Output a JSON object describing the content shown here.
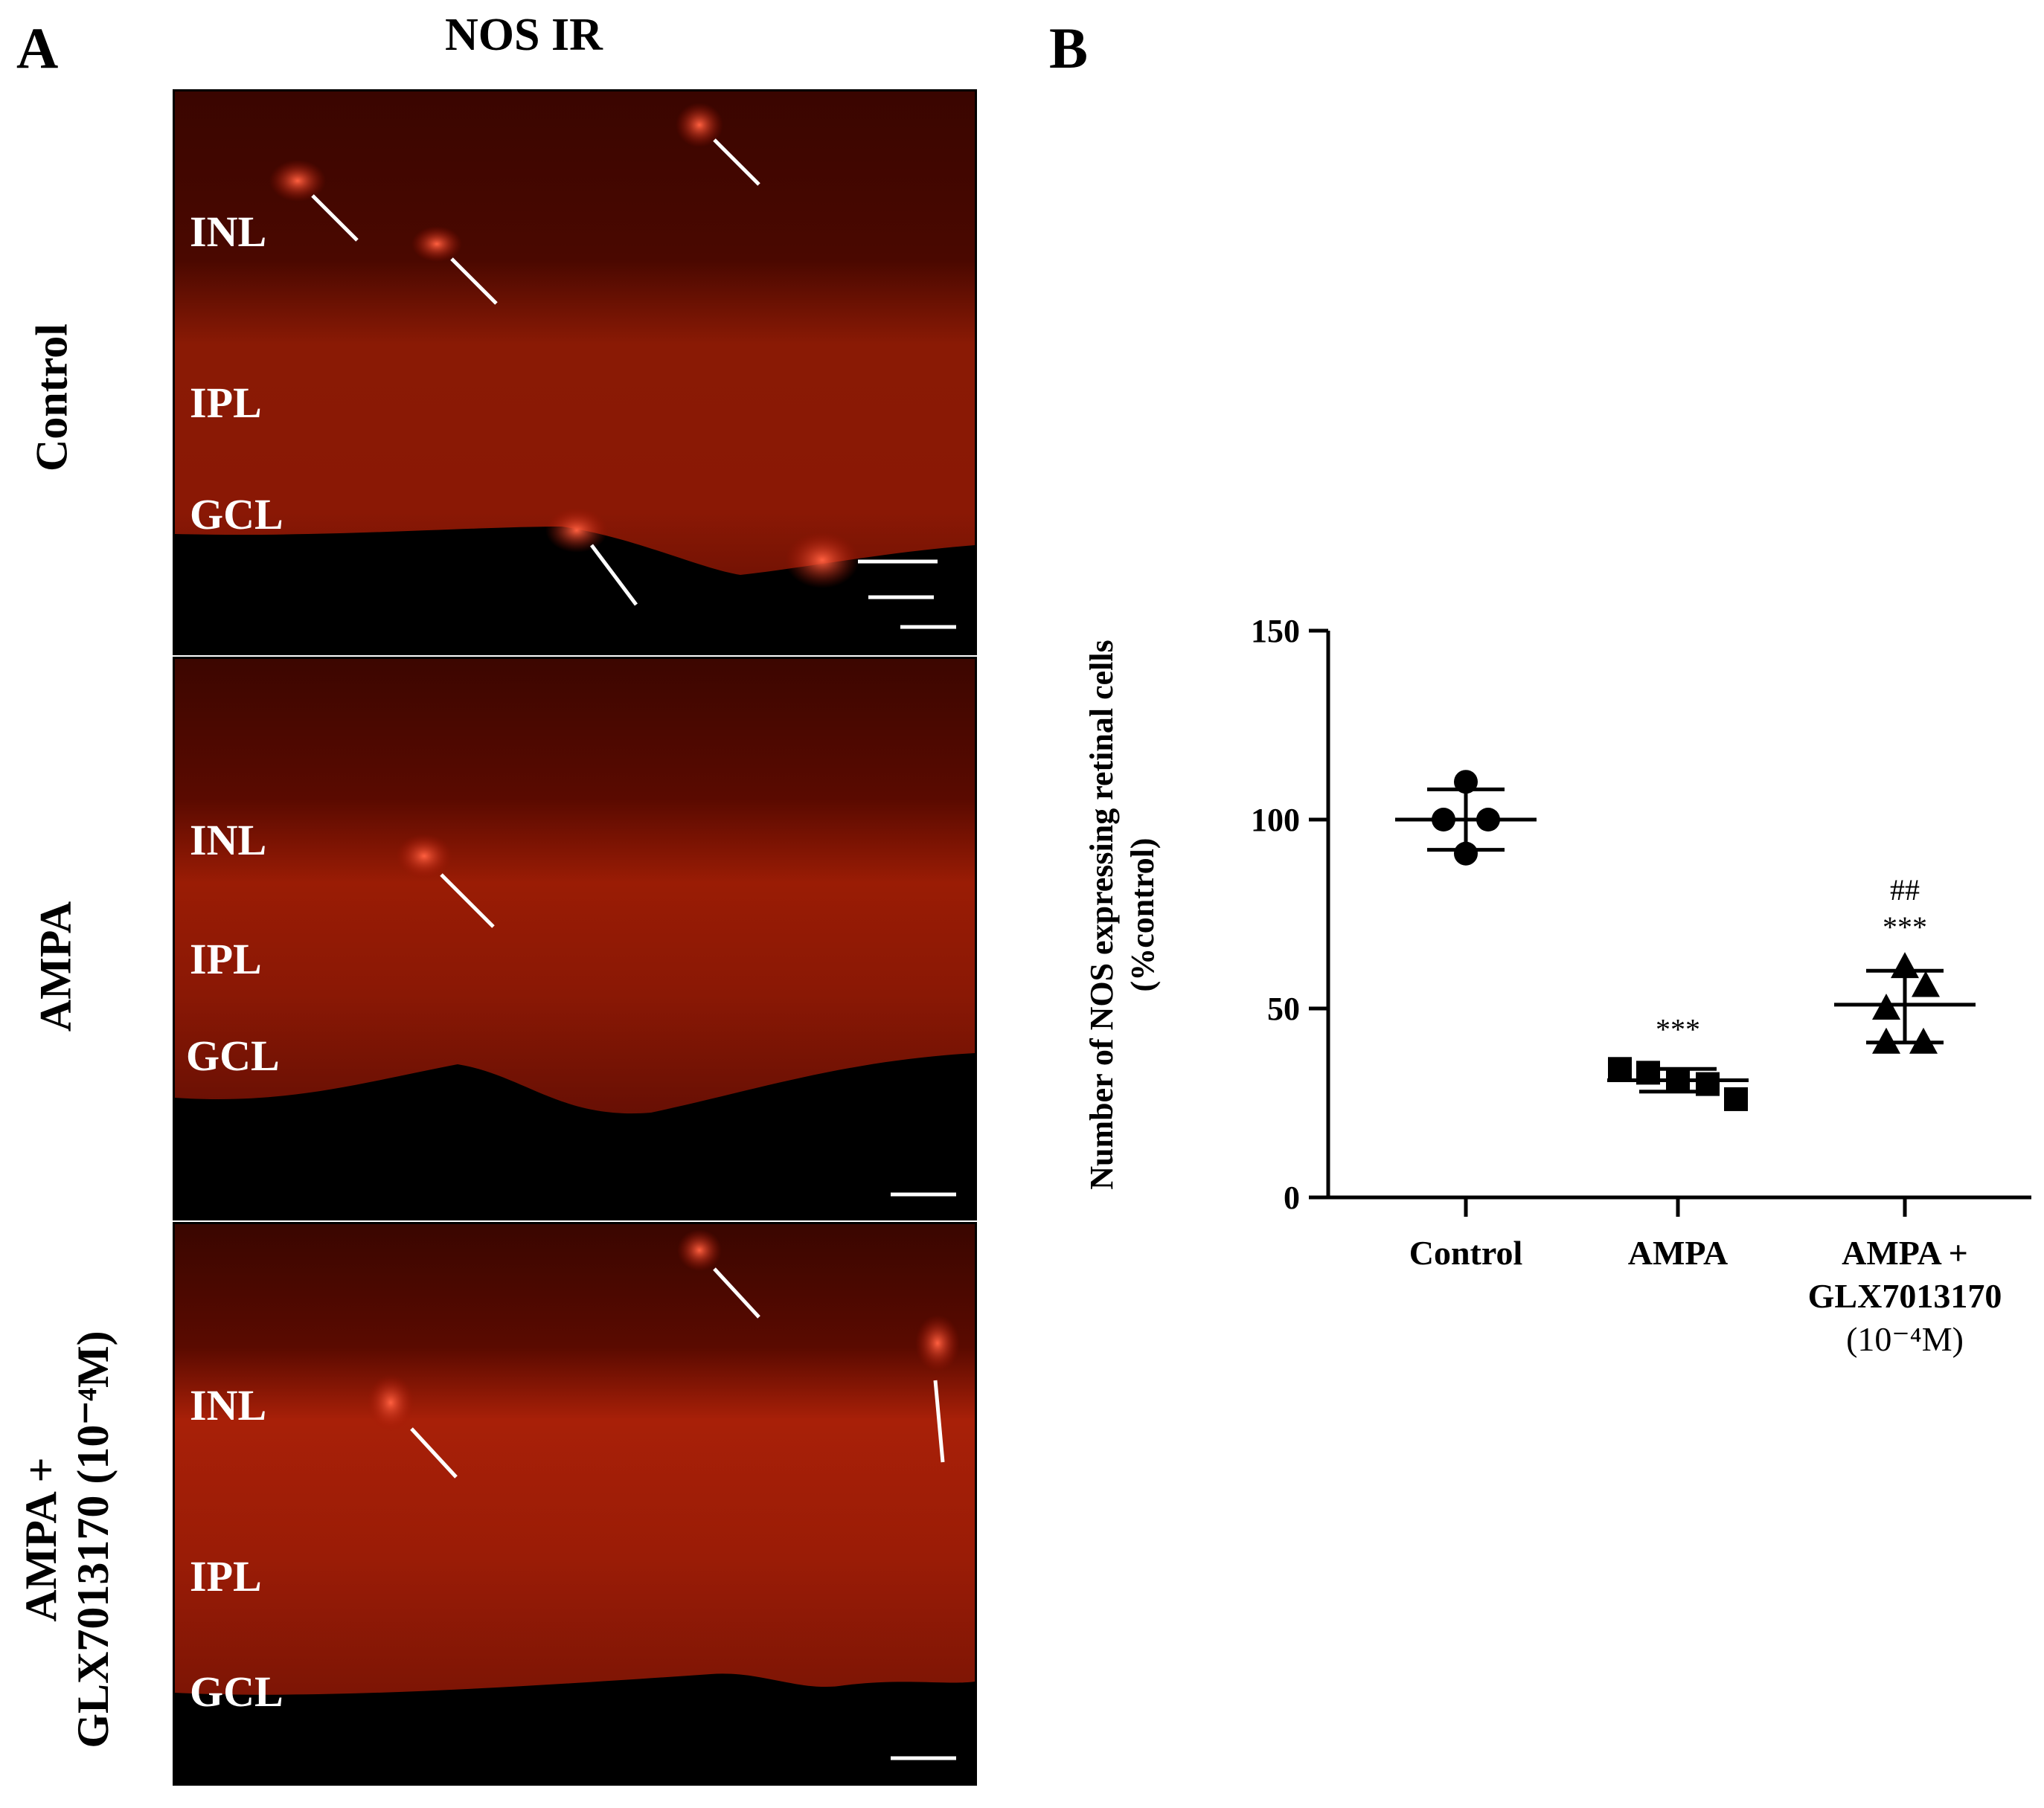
{
  "panel_a": {
    "letter": "A",
    "column_title": "NOS IR",
    "rows": [
      {
        "label": "Control",
        "layers": [
          "INL",
          "IPL",
          "GCL"
        ]
      },
      {
        "label": "AMPA",
        "layers": [
          "INL",
          "IPL",
          "GCL"
        ]
      },
      {
        "label_line1": "AMPA +",
        "label_line2": "GLX7013170 (10⁻⁴M)",
        "layers": [
          "INL",
          "IPL",
          "GCL"
        ]
      }
    ]
  },
  "panel_b": {
    "letter": "B"
  },
  "chart_data": {
    "type": "scatter",
    "ylabel_line1": "Number of NOS expressing retinal cells",
    "ylabel_line2": "(%control)",
    "ylim": [
      0,
      150
    ],
    "yticks": [
      0,
      50,
      100,
      150
    ],
    "categories": [
      "Control",
      "AMPA",
      "AMPA + GLX7013170 (10⁻⁴M)"
    ],
    "category_labels": [
      [
        "Control"
      ],
      [
        "AMPA"
      ],
      [
        "AMPA +",
        "GLX7013170",
        "(10⁻⁴M)"
      ]
    ],
    "series": [
      {
        "category": "Control",
        "marker": "circle",
        "points": [
          110,
          100,
          100,
          91
        ],
        "mean": 100,
        "sd_low": 92,
        "sd_high": 108,
        "annotation": []
      },
      {
        "category": "AMPA",
        "marker": "square",
        "points": [
          34,
          33,
          31,
          30,
          26
        ],
        "mean": 31,
        "sd_low": 28,
        "sd_high": 34,
        "annotation": [
          "***"
        ]
      },
      {
        "category": "AMPA + GLX7013170 (10⁻⁴M)",
        "marker": "triangle",
        "points": [
          61,
          56,
          50,
          41,
          41
        ],
        "mean": 51,
        "sd_low": 41,
        "sd_high": 60,
        "annotation": [
          "##",
          "***"
        ]
      }
    ]
  }
}
